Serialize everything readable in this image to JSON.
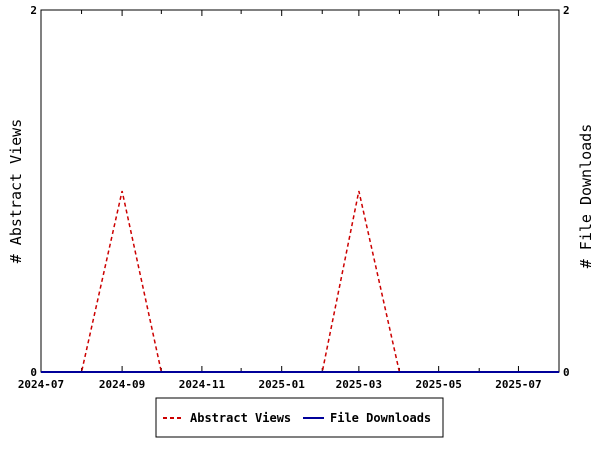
{
  "chart_data": {
    "type": "line",
    "x_type": "date",
    "xlim": [
      "2024-07-01",
      "2025-08-01"
    ],
    "x_ticks": [
      "2024-07",
      "2024-09",
      "2024-11",
      "2025-01",
      "2025-03",
      "2025-05",
      "2025-07"
    ],
    "ylabel_left": "# Abstract Views",
    "ylabel_right": "# File Downloads",
    "ylim_left": [
      0,
      2
    ],
    "ylim_right": [
      0,
      2
    ],
    "y_ticks_left": [
      "0",
      "2"
    ],
    "y_ticks_right": [
      "0",
      "2"
    ],
    "grid": false,
    "legend_position": "bottom",
    "series": [
      {
        "name": "Abstract Views",
        "axis": "left",
        "color": "#cc0000",
        "style": "dashed",
        "x": [
          "2024-07-01",
          "2024-08-01",
          "2024-09-01",
          "2024-10-01",
          "2024-11-01",
          "2024-12-01",
          "2025-01-01",
          "2025-02-01",
          "2025-03-01",
          "2025-04-01",
          "2025-05-01",
          "2025-06-01",
          "2025-07-01",
          "2025-08-01"
        ],
        "y": [
          0,
          0,
          1,
          0,
          0,
          0,
          0,
          0,
          1,
          0,
          0,
          0,
          0,
          0
        ]
      },
      {
        "name": "File Downloads",
        "axis": "right",
        "color": "#000099",
        "style": "solid",
        "x": [
          "2024-07-01",
          "2024-08-01",
          "2024-09-01",
          "2024-10-01",
          "2024-11-01",
          "2024-12-01",
          "2025-01-01",
          "2025-02-01",
          "2025-03-01",
          "2025-04-01",
          "2025-05-01",
          "2025-06-01",
          "2025-07-01",
          "2025-08-01"
        ],
        "y": [
          0,
          0,
          0,
          0,
          0,
          0,
          0,
          0,
          0,
          0,
          0,
          0,
          0,
          0
        ]
      }
    ]
  }
}
